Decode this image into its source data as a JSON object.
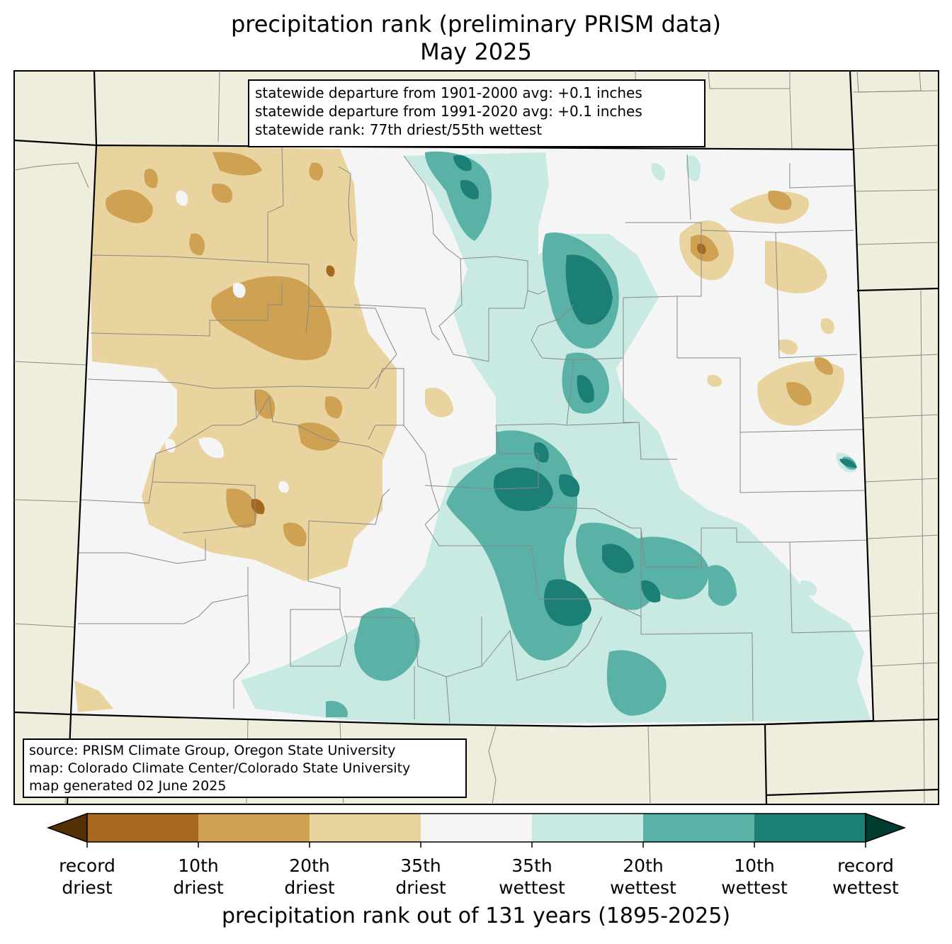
{
  "title": {
    "line1": "precipitation rank (preliminary PRISM data)",
    "line2": "May 2025"
  },
  "stats": {
    "line1": "statewide departure from 1901-2000 avg: +0.1 inches",
    "line2": "statewide departure from 1991-2020 avg: +0.1 inches",
    "line3": "statewide rank: 77th driest/55th wettest"
  },
  "source": {
    "line1": "source: PRISM Climate Group, Oregon State University",
    "line2": "map: Colorado Climate Center/Colorado State University",
    "line3": "map generated 02 June 2025"
  },
  "colorbar": {
    "title": "precipitation rank out of 131 years (1895-2025)",
    "extend_low_color": "#543005",
    "extend_high_color": "#003c30",
    "bins": [
      {
        "color": "#a6671f"
      },
      {
        "color": "#cfa153"
      },
      {
        "color": "#e9d49f"
      },
      {
        "color": "#f4f5f4"
      },
      {
        "color": "#c8eae3"
      },
      {
        "color": "#5ab1a6"
      },
      {
        "color": "#1b7f76"
      }
    ],
    "ticks": [
      {
        "line1": "record",
        "line2": "driest"
      },
      {
        "line1": "10th",
        "line2": "driest"
      },
      {
        "line1": "20th",
        "line2": "driest"
      },
      {
        "line1": "35th",
        "line2": "driest"
      },
      {
        "line1": "35th",
        "line2": "wettest"
      },
      {
        "line1": "20th",
        "line2": "wettest"
      },
      {
        "line1": "10th",
        "line2": "wettest"
      },
      {
        "line1": "record",
        "line2": "wettest"
      }
    ]
  },
  "map": {
    "background_color": "#efeedc",
    "state_fill_color": "#f4f5f4",
    "border_color": "#000000",
    "county_line_color": "#888888"
  }
}
